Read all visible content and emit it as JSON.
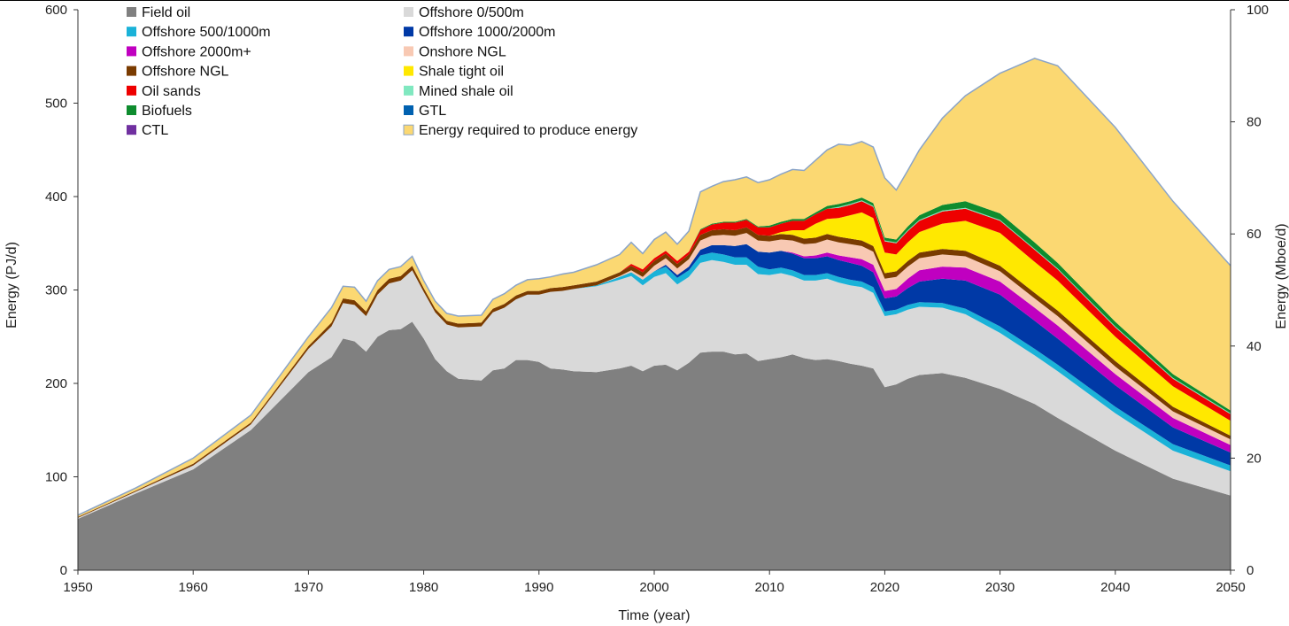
{
  "chart_data": {
    "type": "area",
    "stacked": true,
    "title": "",
    "xlabel": "Time (year)",
    "ylabel": "Energy  (PJ/d)",
    "y2label": "Energy (Mboe/d)",
    "xlim": [
      1950,
      2050
    ],
    "ylim": [
      0,
      600
    ],
    "y2lim": [
      0,
      100
    ],
    "xticks": [
      "1950",
      "1960",
      "1970",
      "1980",
      "1990",
      "2000",
      "2010",
      "2020",
      "2030",
      "2040",
      "2050"
    ],
    "yticks": [
      "0",
      "100",
      "200",
      "300",
      "400",
      "500",
      "600"
    ],
    "y2ticks": [
      "0",
      "20",
      "40",
      "60",
      "80",
      "100"
    ],
    "grid": false,
    "legend_position": "top-left",
    "x": [
      1950,
      1955,
      1960,
      1965,
      1970,
      1972,
      1973,
      1974,
      1975,
      1976,
      1977,
      1978,
      1979,
      1980,
      1981,
      1982,
      1983,
      1985,
      1986,
      1987,
      1988,
      1989,
      1990,
      1991,
      1992,
      1993,
      1995,
      1997,
      1998,
      1999,
      2000,
      2001,
      2002,
      2003,
      2004,
      2005,
      2006,
      2007,
      2008,
      2009,
      2010,
      2011,
      2012,
      2013,
      2014,
      2015,
      2016,
      2017,
      2018,
      2019,
      2020,
      2021,
      2022,
      2023,
      2025,
      2027,
      2030,
      2033,
      2035,
      2040,
      2045,
      2050
    ],
    "series": [
      {
        "name": "Field oil",
        "color": "#808080",
        "values": [
          55,
          82,
          108,
          150,
          212,
          228,
          248,
          245,
          234,
          250,
          257,
          258,
          266,
          248,
          226,
          213,
          205,
          203,
          214,
          216,
          225,
          225,
          223,
          216,
          215,
          213,
          212,
          216,
          219,
          213,
          219,
          220,
          214,
          222,
          233,
          234,
          234,
          231,
          232,
          224,
          226,
          228,
          231,
          227,
          225,
          226,
          224,
          221,
          219,
          216,
          196,
          199,
          205,
          209,
          211,
          206,
          194,
          178,
          163,
          128,
          98,
          80
        ]
      },
      {
        "name": "Offshore 0/500m",
        "color": "#d9d9d9",
        "values": [
          1,
          2,
          4,
          6,
          25,
          33,
          38,
          39,
          38,
          45,
          50,
          52,
          55,
          50,
          50,
          50,
          55,
          58,
          62,
          65,
          65,
          70,
          72,
          82,
          84,
          88,
          92,
          95,
          96,
          92,
          95,
          98,
          92,
          92,
          96,
          98,
          96,
          96,
          95,
          93,
          90,
          90,
          84,
          83,
          85,
          86,
          84,
          84,
          84,
          81,
          76,
          75,
          74,
          73,
          70,
          68,
          60,
          52,
          50,
          40,
          30,
          26
        ]
      },
      {
        "name": "Offshore 500/1000m",
        "color": "#1ab2d8",
        "values": [
          0,
          0,
          0,
          0,
          0,
          0,
          0,
          0,
          0,
          0,
          0,
          0,
          0,
          0,
          0,
          0,
          0,
          0,
          0,
          0,
          0,
          0,
          0,
          0,
          0,
          0,
          1,
          3,
          4,
          6,
          6,
          7,
          7,
          7,
          8,
          8,
          8,
          8,
          8,
          8,
          6,
          6,
          6,
          6,
          6,
          6,
          6,
          6,
          6,
          6,
          5,
          5,
          5,
          5,
          5,
          6,
          7,
          7,
          7,
          7,
          7,
          6
        ]
      },
      {
        "name": "Offshore 1000/2000m",
        "color": "#0039a6",
        "values": [
          0,
          0,
          0,
          0,
          0,
          0,
          0,
          0,
          0,
          0,
          0,
          0,
          0,
          0,
          0,
          0,
          0,
          0,
          0,
          0,
          0,
          0,
          0,
          0,
          0,
          0,
          0,
          0,
          0,
          0,
          0,
          2,
          3,
          4,
          6,
          8,
          10,
          12,
          14,
          16,
          18,
          18,
          18,
          18,
          18,
          18,
          18,
          18,
          17,
          16,
          14,
          14,
          18,
          22,
          26,
          30,
          34,
          30,
          28,
          23,
          18,
          14
        ]
      },
      {
        "name": "Offshore 2000m+",
        "color": "#c000c0",
        "values": [
          0,
          0,
          0,
          0,
          0,
          0,
          0,
          0,
          0,
          0,
          0,
          0,
          0,
          0,
          0,
          0,
          0,
          0,
          0,
          0,
          0,
          0,
          0,
          0,
          0,
          0,
          0,
          0,
          0,
          0,
          0,
          0,
          0,
          0,
          0,
          0,
          0,
          0,
          0,
          0,
          0,
          0,
          1,
          2,
          3,
          4,
          5,
          6,
          7,
          8,
          8,
          8,
          10,
          12,
          13,
          14,
          14,
          14,
          14,
          12,
          10,
          8
        ]
      },
      {
        "name": "Onshore NGL",
        "color": "#f8c9b3",
        "values": [
          0,
          0,
          0,
          0,
          0,
          0,
          0,
          0,
          0,
          0,
          0,
          0,
          0,
          0,
          0,
          0,
          0,
          0,
          0,
          0,
          0,
          0,
          0,
          0,
          0,
          0,
          0,
          1,
          2,
          3,
          6,
          7,
          7,
          8,
          10,
          10,
          11,
          11,
          12,
          12,
          12,
          12,
          13,
          13,
          13,
          14,
          14,
          14,
          14,
          14,
          13,
          13,
          13,
          13,
          13,
          12,
          11,
          10,
          10,
          8,
          7,
          6
        ]
      },
      {
        "name": "Offshore NGL",
        "color": "#7a3b00",
        "values": [
          1,
          1,
          2,
          2,
          3,
          4,
          5,
          5,
          5,
          5,
          5,
          5,
          5,
          4,
          4,
          4,
          4,
          4,
          4,
          4,
          4,
          4,
          4,
          4,
          4,
          4,
          4,
          4,
          5,
          5,
          5,
          5,
          5,
          5,
          6,
          6,
          6,
          6,
          6,
          6,
          6,
          6,
          6,
          6,
          6,
          6,
          6,
          6,
          6,
          6,
          6,
          6,
          6,
          6,
          6,
          6,
          6,
          6,
          6,
          6,
          5,
          4
        ]
      },
      {
        "name": "Shale tight oil",
        "color": "#ffe800",
        "values": [
          0,
          0,
          0,
          0,
          0,
          0,
          0,
          0,
          0,
          0,
          0,
          0,
          0,
          0,
          0,
          0,
          0,
          0,
          0,
          0,
          0,
          0,
          0,
          0,
          0,
          0,
          0,
          0,
          0,
          0,
          0,
          0,
          0,
          0,
          0,
          0,
          0,
          0,
          0,
          0,
          0,
          2,
          5,
          9,
          15,
          16,
          20,
          25,
          30,
          30,
          22,
          18,
          20,
          22,
          27,
          32,
          35,
          33,
          32,
          26,
          22,
          16
        ]
      },
      {
        "name": "Oil sands",
        "color": "#ee0000",
        "values": [
          0,
          0,
          0,
          0,
          0,
          0,
          0,
          0,
          0,
          0,
          0,
          0,
          0,
          0,
          0,
          0,
          0,
          0,
          0,
          0,
          0,
          0,
          0,
          0,
          0,
          0,
          0,
          0,
          2,
          3,
          3,
          3,
          3,
          3,
          5,
          6,
          7,
          8,
          8,
          8,
          9,
          9,
          10,
          10,
          10,
          11,
          11,
          11,
          12,
          12,
          12,
          12,
          12,
          12,
          13,
          13,
          13,
          13,
          12,
          10,
          8,
          7
        ]
      },
      {
        "name": "Mined shale oil",
        "color": "#80e8c0",
        "values": [
          0,
          0,
          0,
          0,
          0,
          0,
          0,
          0,
          0,
          0,
          0,
          0,
          0,
          0,
          0,
          0,
          0,
          0,
          0,
          0,
          0,
          0,
          0,
          0,
          0,
          0,
          0,
          0,
          0,
          0,
          0,
          0,
          0,
          0,
          0,
          0,
          0,
          0,
          0,
          0,
          0,
          0,
          0,
          0,
          0,
          0,
          1,
          1,
          1,
          1,
          1,
          1,
          1,
          1,
          1,
          1,
          1,
          1,
          1,
          1,
          1,
          1
        ]
      },
      {
        "name": "Biofuels",
        "color": "#0e8c2e",
        "values": [
          0,
          0,
          0,
          0,
          0,
          0,
          0,
          0,
          0,
          0,
          0,
          0,
          0,
          0,
          0,
          0,
          0,
          0,
          0,
          0,
          0,
          0,
          0,
          0,
          0,
          0,
          0,
          0,
          0,
          0,
          0,
          0,
          0,
          0,
          1,
          1,
          1,
          1,
          1,
          1,
          2,
          2,
          2,
          2,
          2,
          3,
          3,
          3,
          3,
          3,
          3,
          3,
          4,
          5,
          6,
          7,
          7,
          7,
          6,
          5,
          4,
          3
        ]
      },
      {
        "name": "GTL",
        "color": "#0061b0",
        "values": [
          0,
          0,
          0,
          0,
          0,
          0,
          0,
          0,
          0,
          0,
          0,
          0,
          0,
          0,
          0,
          0,
          0,
          0,
          0,
          0,
          0,
          0,
          0,
          0,
          0,
          0,
          0,
          0,
          0,
          0,
          0,
          0,
          0,
          0,
          0,
          0,
          0,
          0,
          0,
          0,
          0,
          0,
          0,
          0,
          0,
          0,
          0,
          0,
          0,
          0,
          0,
          0,
          0,
          0,
          0,
          0,
          0,
          0,
          0,
          0,
          0,
          0
        ]
      },
      {
        "name": "CTL",
        "color": "#7030a0",
        "values": [
          0,
          0,
          0,
          0,
          0,
          0,
          0,
          0,
          0,
          0,
          0,
          0,
          0,
          0,
          0,
          0,
          0,
          0,
          0,
          0,
          0,
          0,
          0,
          0,
          0,
          0,
          0,
          0,
          0,
          0,
          0,
          0,
          0,
          0,
          0,
          0,
          0,
          0,
          0,
          0,
          0,
          0,
          0,
          0,
          0,
          0,
          0,
          0,
          0,
          0,
          0,
          0,
          0,
          0,
          0,
          0,
          0,
          0,
          0,
          0,
          0,
          0
        ]
      },
      {
        "name": "Energy required to produce energy",
        "color": "#fbd872",
        "values": [
          2,
          3,
          6,
          8,
          10,
          16,
          13,
          14,
          11,
          10,
          10,
          10,
          10,
          8,
          8,
          8,
          8,
          8,
          10,
          11,
          11,
          12,
          13,
          12,
          14,
          14,
          18,
          19,
          23,
          17,
          20,
          20,
          18,
          22,
          40,
          40,
          43,
          45,
          45,
          47,
          49,
          51,
          53,
          52,
          56,
          60,
          64,
          60,
          60,
          60,
          64,
          53,
          60,
          70,
          93,
          113,
          150,
          197,
          211,
          208,
          185,
          155
        ]
      }
    ]
  },
  "colors": {
    "outline": "#8aa4c8",
    "axis": "#333333",
    "legend_patch_border": "#8aa4c8"
  }
}
